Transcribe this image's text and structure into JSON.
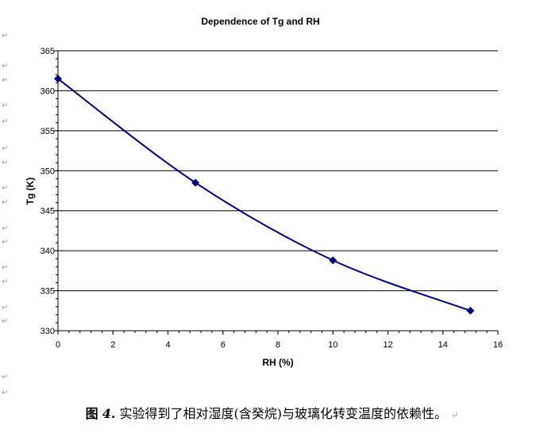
{
  "chart_data": {
    "type": "line",
    "title": "Dependence of Tg and RH",
    "xlabel": "RH (%)",
    "ylabel": "Tg (K)",
    "xlim": [
      0,
      16
    ],
    "ylim": [
      330,
      365
    ],
    "xticks": [
      0,
      2,
      4,
      6,
      8,
      10,
      12,
      14,
      16
    ],
    "yticks": [
      330,
      335,
      340,
      345,
      350,
      355,
      360,
      365
    ],
    "grid": "horizontal major",
    "legend": "none",
    "smoothed": true,
    "marker": "diamond",
    "color": "#000080",
    "series": [
      {
        "x": [
          0,
          5,
          10,
          15
        ],
        "y": [
          361.5,
          348.5,
          338.8,
          332.5
        ]
      }
    ]
  },
  "caption": {
    "label": "图",
    "number": "4.",
    "text": "实验得到了相对湿度(含癸烷)与玻璃化转变温度的依赖性。"
  },
  "return_mark": "↵"
}
